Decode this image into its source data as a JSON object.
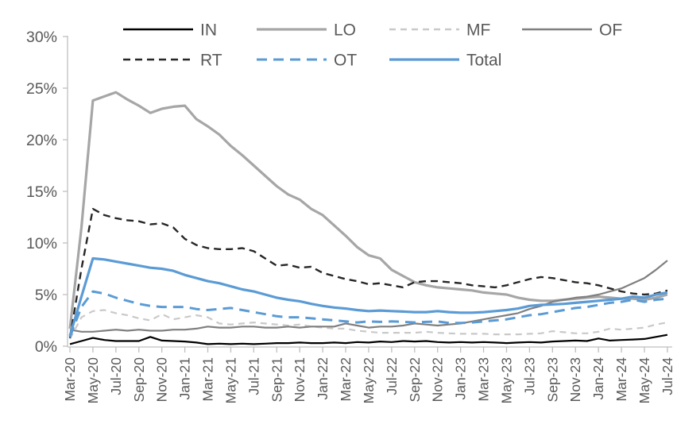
{
  "chart": {
    "background": "#ffffff",
    "text_color": "#595959",
    "axis_line_color": "#bfbfbf",
    "legend": {
      "position": "top",
      "rows": [
        [
          "IN",
          "LO",
          "MF",
          "OF"
        ],
        [
          "RT",
          "OT",
          "Total"
        ]
      ]
    }
  },
  "chart_data": {
    "type": "line",
    "title": "",
    "xlabel": "",
    "ylabel": "",
    "ylim": [
      0,
      30
    ],
    "y_tick_step": 5,
    "y_tick_labels": [
      "0%",
      "5%",
      "10%",
      "15%",
      "20%",
      "25%",
      "30%"
    ],
    "grid": false,
    "legend_position": "top",
    "x": [
      "Mar-20",
      "Apr-20",
      "May-20",
      "Jun-20",
      "Jul-20",
      "Aug-20",
      "Sep-20",
      "Oct-20",
      "Nov-20",
      "Dec-20",
      "Jan-21",
      "Feb-21",
      "Mar-21",
      "Apr-21",
      "May-21",
      "Jun-21",
      "Jul-21",
      "Aug-21",
      "Sep-21",
      "Oct-21",
      "Nov-21",
      "Dec-21",
      "Jan-22",
      "Feb-22",
      "Mar-22",
      "Apr-22",
      "May-22",
      "Jun-22",
      "Jul-22",
      "Aug-22",
      "Sep-22",
      "Oct-22",
      "Nov-22",
      "Dec-22",
      "Jan-23",
      "Feb-23",
      "Mar-23",
      "Apr-23",
      "May-23",
      "Jun-23",
      "Jul-23",
      "Aug-23",
      "Sep-23",
      "Oct-23",
      "Nov-23",
      "Dec-23",
      "Jan-24",
      "Feb-24",
      "Mar-24",
      "Apr-24",
      "May-24",
      "Jun-24",
      "Jul-24"
    ],
    "x_tick_labels": [
      "Mar-20",
      "May-20",
      "Jul-20",
      "Sep-20",
      "Nov-20",
      "Jan-21",
      "Mar-21",
      "May-21",
      "Jul-21",
      "Sep-21",
      "Nov-21",
      "Jan-22",
      "Mar-22",
      "May-22",
      "Jul-22",
      "Sep-22",
      "Nov-22",
      "Jan-23",
      "Mar-23",
      "May-23",
      "Jul-23",
      "Sep-23",
      "Nov-23",
      "Jan-24",
      "Mar-24",
      "May-24",
      "Jul-24"
    ],
    "series": [
      {
        "name": "IN",
        "color": "#000000",
        "style": "solid",
        "width": 2.2,
        "values": [
          0.2,
          0.5,
          0.8,
          0.6,
          0.5,
          0.5,
          0.5,
          0.9,
          0.55,
          0.5,
          0.45,
          0.35,
          0.2,
          0.25,
          0.2,
          0.25,
          0.2,
          0.25,
          0.3,
          0.3,
          0.35,
          0.3,
          0.3,
          0.35,
          0.3,
          0.4,
          0.35,
          0.45,
          0.4,
          0.5,
          0.45,
          0.5,
          0.4,
          0.35,
          0.4,
          0.35,
          0.4,
          0.35,
          0.3,
          0.35,
          0.4,
          0.35,
          0.45,
          0.5,
          0.55,
          0.5,
          0.75,
          0.55,
          0.6,
          0.65,
          0.7,
          0.9,
          1.1
        ]
      },
      {
        "name": "LO",
        "color": "#a6a6a6",
        "style": "solid",
        "width": 3.2,
        "values": [
          1.7,
          11.5,
          23.8,
          24.2,
          24.6,
          23.9,
          23.3,
          22.6,
          23.0,
          23.2,
          23.3,
          22.0,
          21.3,
          20.5,
          19.4,
          18.5,
          17.5,
          16.5,
          15.5,
          14.7,
          14.2,
          13.3,
          12.7,
          11.7,
          10.7,
          9.6,
          8.8,
          8.5,
          7.4,
          6.8,
          6.2,
          5.9,
          5.7,
          5.6,
          5.5,
          5.4,
          5.2,
          5.1,
          5.0,
          4.7,
          4.5,
          4.4,
          4.4,
          4.5,
          4.6,
          4.7,
          4.8,
          4.7,
          4.6,
          4.6,
          4.5,
          4.7,
          5.0
        ]
      },
      {
        "name": "MF",
        "color": "#c9c9c9",
        "style": "dashed",
        "width": 2.2,
        "values": [
          0.7,
          2.8,
          3.4,
          3.5,
          3.2,
          3.0,
          2.7,
          2.5,
          3.1,
          2.6,
          2.8,
          3.0,
          2.8,
          2.2,
          2.1,
          2.2,
          2.3,
          2.2,
          2.1,
          2.0,
          2.1,
          1.9,
          1.8,
          1.7,
          1.7,
          1.5,
          1.4,
          1.3,
          1.3,
          1.3,
          1.3,
          1.4,
          1.3,
          1.25,
          1.2,
          1.2,
          1.2,
          1.15,
          1.15,
          1.15,
          1.2,
          1.25,
          1.45,
          1.35,
          1.25,
          1.25,
          1.4,
          1.7,
          1.6,
          1.7,
          1.8,
          2.1,
          2.3
        ]
      },
      {
        "name": "OF",
        "color": "#7f7f7f",
        "style": "solid",
        "width": 2.2,
        "values": [
          1.6,
          1.4,
          1.4,
          1.5,
          1.6,
          1.5,
          1.6,
          1.5,
          1.5,
          1.6,
          1.6,
          1.7,
          1.9,
          1.8,
          1.8,
          1.9,
          1.9,
          1.8,
          1.8,
          1.9,
          1.8,
          1.9,
          1.9,
          1.9,
          2.2,
          2.0,
          1.8,
          1.9,
          1.9,
          2.0,
          2.2,
          2.1,
          2.0,
          2.1,
          2.2,
          2.4,
          2.6,
          2.8,
          3.0,
          3.2,
          3.6,
          3.9,
          4.3,
          4.5,
          4.7,
          4.8,
          5.0,
          5.3,
          5.6,
          6.1,
          6.6,
          7.4,
          8.3
        ]
      },
      {
        "name": "RT",
        "color": "#262626",
        "style": "dashed",
        "width": 2.4,
        "values": [
          0.8,
          7.5,
          13.3,
          12.7,
          12.4,
          12.2,
          12.1,
          11.8,
          11.9,
          11.5,
          10.4,
          9.8,
          9.5,
          9.4,
          9.4,
          9.5,
          9.2,
          8.5,
          7.8,
          7.9,
          7.6,
          7.7,
          7.1,
          6.8,
          6.5,
          6.3,
          6.0,
          6.1,
          5.9,
          5.7,
          6.2,
          6.3,
          6.3,
          6.2,
          6.1,
          5.9,
          5.8,
          5.7,
          5.9,
          6.2,
          6.5,
          6.7,
          6.6,
          6.4,
          6.2,
          6.1,
          5.9,
          5.6,
          5.3,
          5.1,
          5.0,
          5.1,
          5.4
        ]
      },
      {
        "name": "OT",
        "color": "#5b9bd5",
        "style": "dashed",
        "width": 3.0,
        "values": [
          0.9,
          3.8,
          5.3,
          5.1,
          4.7,
          4.4,
          4.1,
          3.9,
          3.8,
          3.8,
          3.8,
          3.6,
          3.5,
          3.6,
          3.7,
          3.5,
          3.3,
          3.1,
          2.9,
          2.8,
          2.8,
          2.7,
          2.6,
          2.5,
          2.4,
          2.3,
          2.4,
          2.35,
          2.4,
          2.35,
          2.3,
          2.35,
          2.4,
          2.25,
          2.25,
          2.3,
          2.4,
          2.5,
          2.6,
          2.8,
          3.0,
          3.1,
          3.3,
          3.5,
          3.7,
          3.8,
          4.0,
          4.2,
          4.3,
          4.5,
          4.3,
          4.5,
          4.6
        ]
      },
      {
        "name": "Total",
        "color": "#5b9bd5",
        "style": "solid",
        "width": 3.2,
        "values": [
          1.0,
          4.8,
          8.5,
          8.4,
          8.2,
          8.0,
          7.8,
          7.6,
          7.5,
          7.3,
          6.9,
          6.6,
          6.3,
          6.1,
          5.8,
          5.5,
          5.3,
          5.0,
          4.7,
          4.5,
          4.35,
          4.1,
          3.9,
          3.75,
          3.65,
          3.5,
          3.4,
          3.45,
          3.4,
          3.35,
          3.3,
          3.3,
          3.4,
          3.3,
          3.25,
          3.25,
          3.3,
          3.4,
          3.5,
          3.65,
          3.9,
          4.0,
          4.05,
          4.1,
          4.2,
          4.3,
          4.4,
          4.5,
          4.6,
          4.8,
          4.7,
          5.0,
          5.2
        ]
      }
    ]
  }
}
